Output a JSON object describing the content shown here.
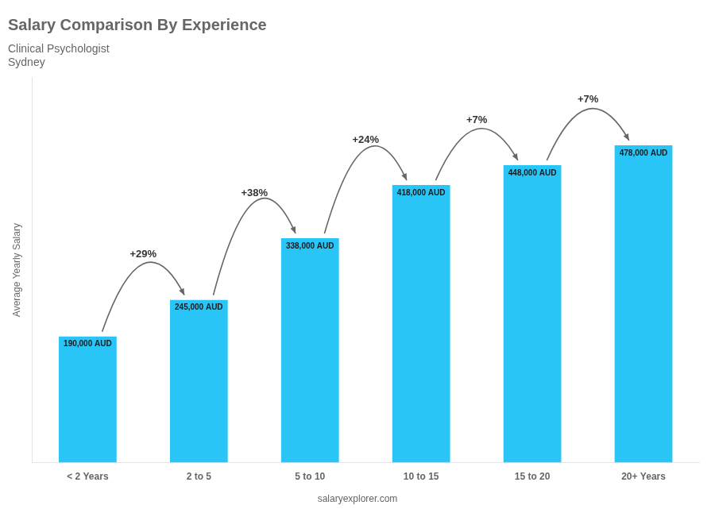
{
  "chart_data": {
    "type": "bar",
    "title": "Salary Comparison By Experience",
    "subtitle": "Clinical Psychologist",
    "city": "Sydney",
    "categories": [
      "< 2 Years",
      "2 to 5",
      "5 to 10",
      "10 to 15",
      "15 to 20",
      "20+ Years"
    ],
    "values": [
      190000,
      245000,
      338000,
      418000,
      448000,
      478000
    ],
    "value_labels": [
      "190,000 AUD",
      "245,000 AUD",
      "338,000 AUD",
      "418,000 AUD",
      "448,000 AUD",
      "478,000 AUD"
    ],
    "data_labels": true,
    "color": "#29c5f6",
    "ylabel": "Average Yearly Salary",
    "ylim": [
      0,
      580000
    ],
    "tick_labels": "x",
    "grid": false,
    "annotations": [
      "+29%",
      "+38%",
      "+24%",
      "+7%",
      "+7%"
    ],
    "watermark": "salaryexplorer.com"
  }
}
